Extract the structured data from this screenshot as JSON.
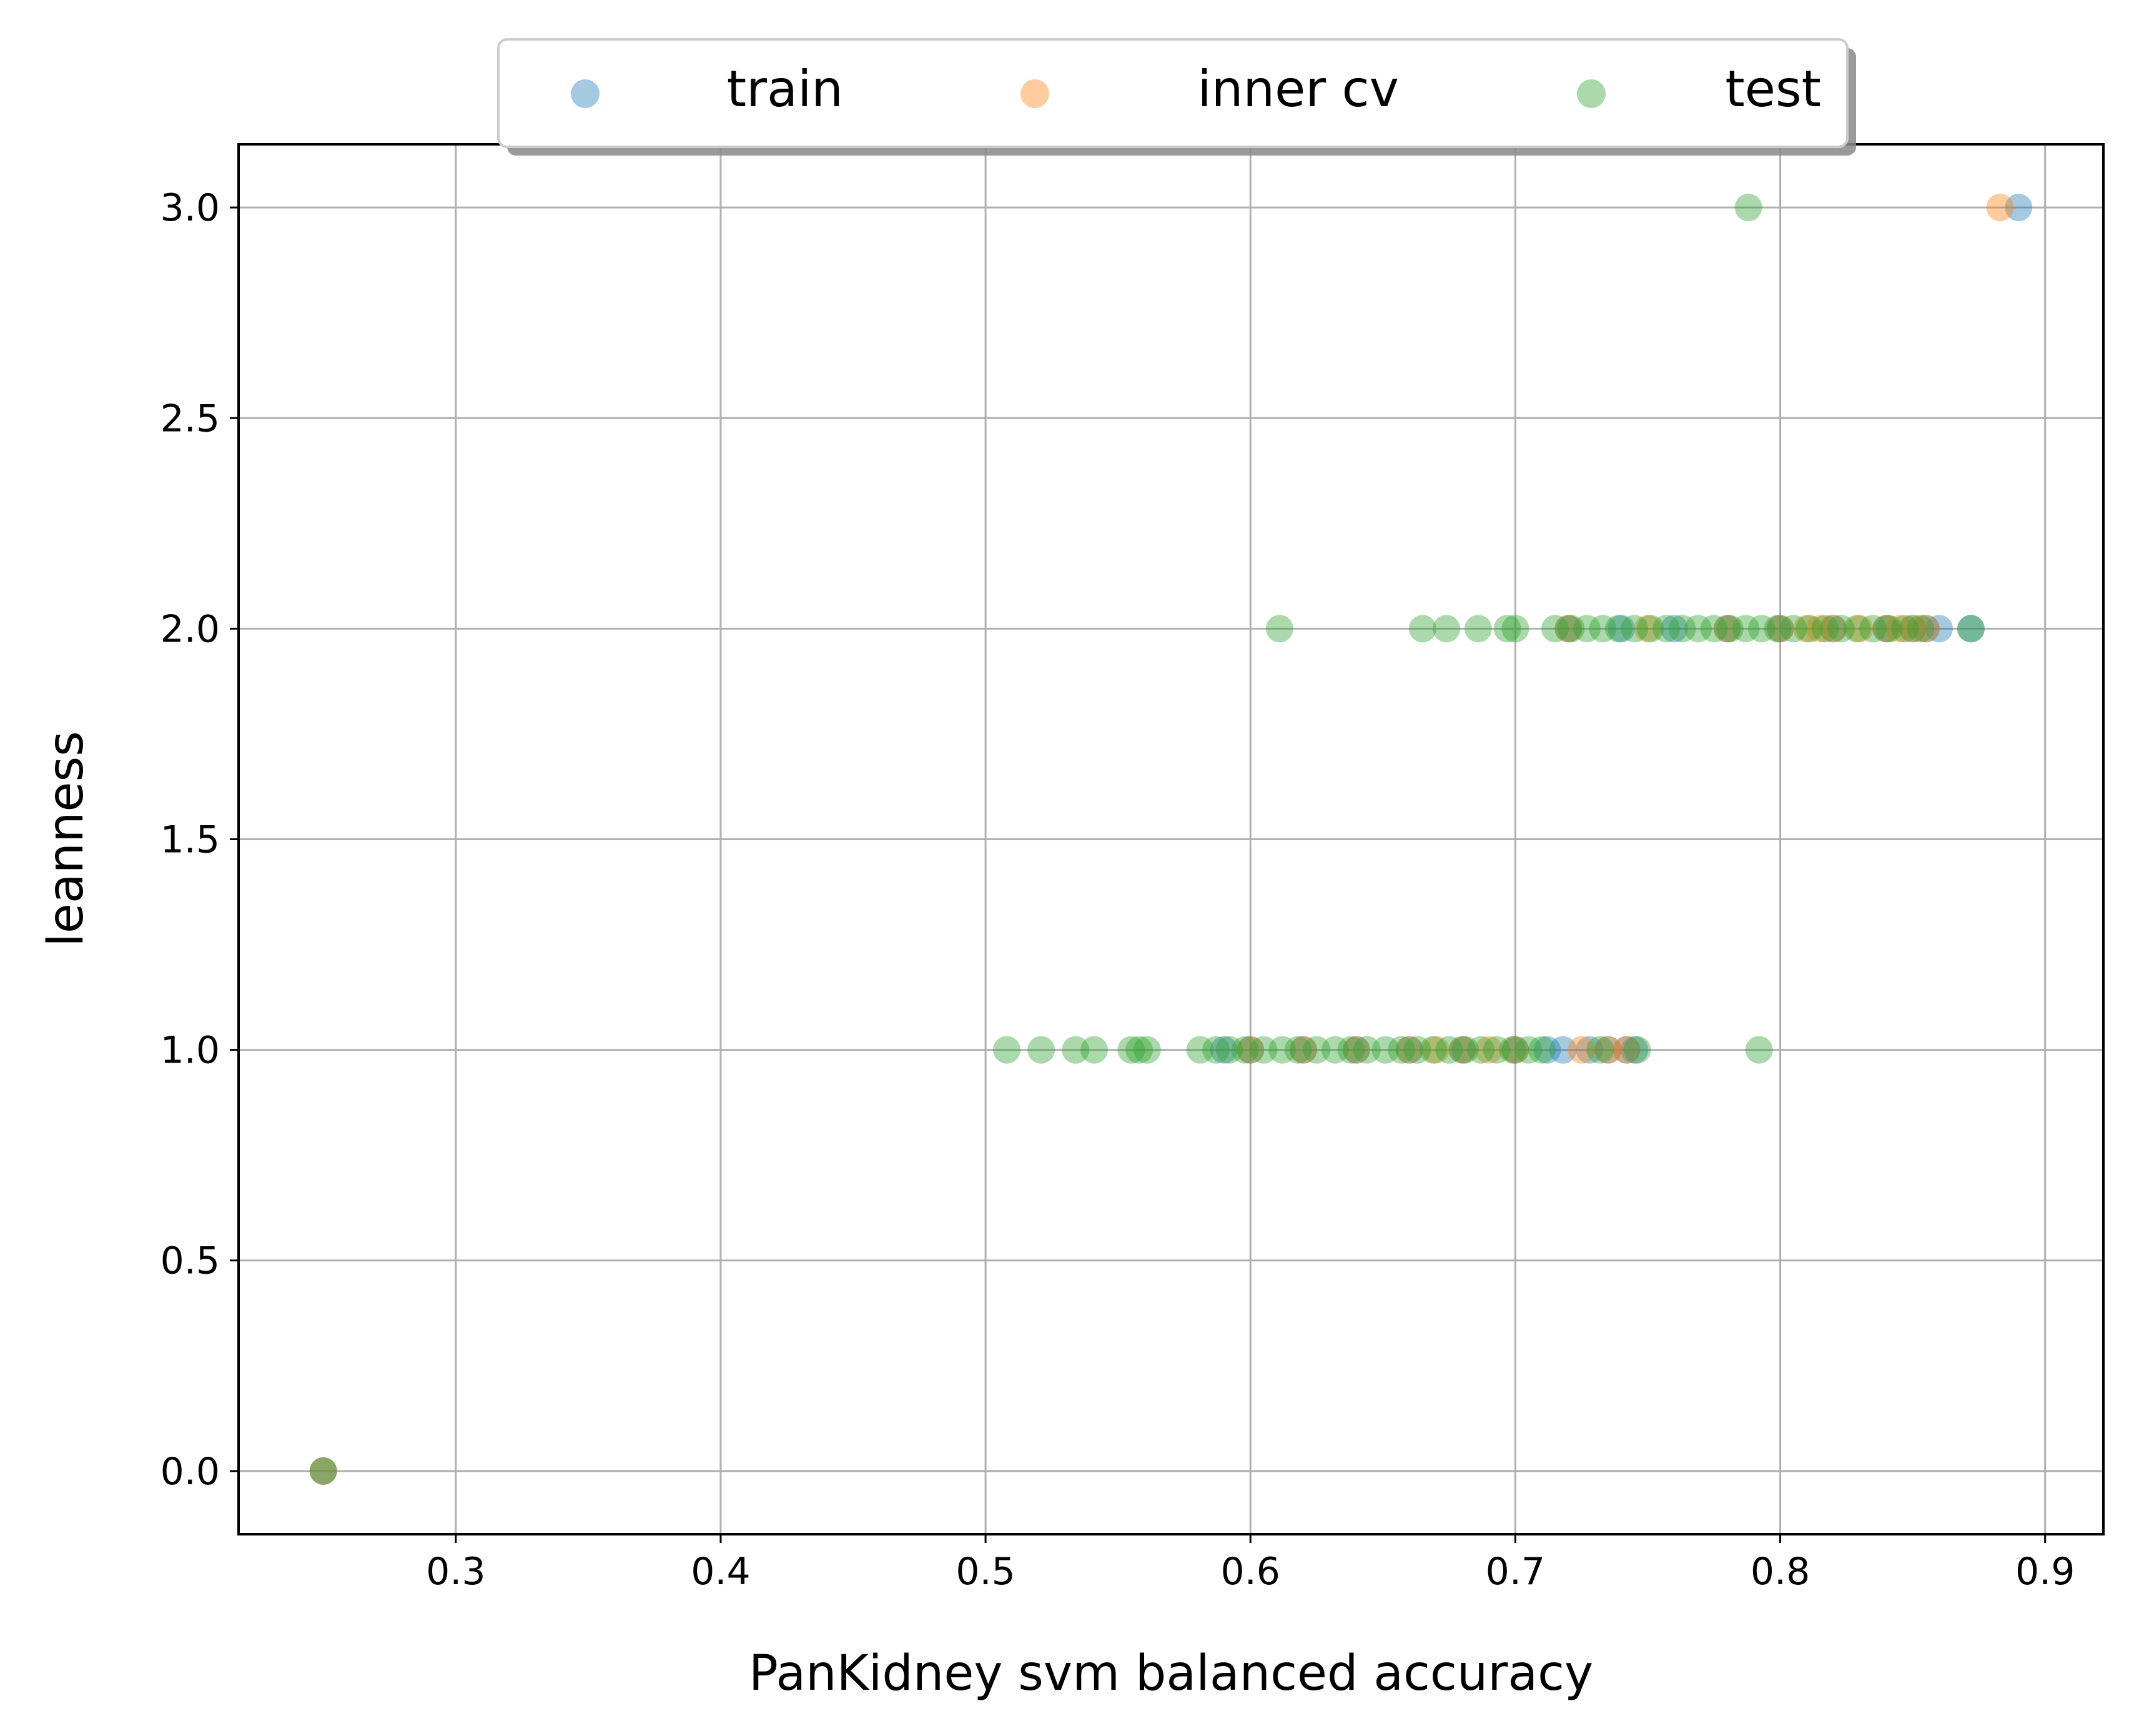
{
  "chart_data": {
    "type": "scatter",
    "xlabel": "PanKidney svm balanced accuracy",
    "ylabel": "leanness",
    "xlim": [
      0.218,
      0.922
    ],
    "ylim": [
      -0.15,
      3.15
    ],
    "x_ticks": [
      0.3,
      0.4,
      0.5,
      0.6,
      0.7,
      0.8,
      0.9
    ],
    "x_tick_labels": [
      "0.3",
      "0.4",
      "0.5",
      "0.6",
      "0.7",
      "0.8",
      "0.9"
    ],
    "y_ticks": [
      0.0,
      0.5,
      1.0,
      1.5,
      2.0,
      2.5,
      3.0
    ],
    "y_tick_labels": [
      "0.0",
      "0.5",
      "1.0",
      "1.5",
      "2.0",
      "2.5",
      "3.0"
    ],
    "grid": true,
    "legend_position": "top-center",
    "series": [
      {
        "name": "train",
        "color": "#1f77b4",
        "points": [
          [
            0.25,
            0
          ],
          [
            0.59,
            1
          ],
          [
            0.6,
            1
          ],
          [
            0.62,
            1
          ],
          [
            0.64,
            1
          ],
          [
            0.66,
            1
          ],
          [
            0.68,
            1
          ],
          [
            0.7,
            1
          ],
          [
            0.712,
            1
          ],
          [
            0.718,
            1
          ],
          [
            0.728,
            1
          ],
          [
            0.735,
            1
          ],
          [
            0.742,
            1
          ],
          [
            0.745,
            1
          ],
          [
            0.72,
            2
          ],
          [
            0.74,
            2
          ],
          [
            0.76,
            2
          ],
          [
            0.78,
            2
          ],
          [
            0.8,
            2
          ],
          [
            0.82,
            2
          ],
          [
            0.84,
            2
          ],
          [
            0.85,
            2
          ],
          [
            0.855,
            2
          ],
          [
            0.86,
            2
          ],
          [
            0.872,
            2
          ],
          [
            0.89,
            3
          ]
        ]
      },
      {
        "name": "inner cv",
        "color": "#ff7f0e",
        "points": [
          [
            0.25,
            0
          ],
          [
            0.6,
            1
          ],
          [
            0.62,
            1
          ],
          [
            0.64,
            1
          ],
          [
            0.66,
            1
          ],
          [
            0.67,
            1
          ],
          [
            0.68,
            1
          ],
          [
            0.69,
            1
          ],
          [
            0.7,
            1
          ],
          [
            0.725,
            1
          ],
          [
            0.735,
            1
          ],
          [
            0.742,
            1
          ],
          [
            0.72,
            2
          ],
          [
            0.75,
            2
          ],
          [
            0.78,
            2
          ],
          [
            0.8,
            2
          ],
          [
            0.81,
            2
          ],
          [
            0.815,
            2
          ],
          [
            0.82,
            2
          ],
          [
            0.83,
            2
          ],
          [
            0.84,
            2
          ],
          [
            0.845,
            2
          ],
          [
            0.85,
            2
          ],
          [
            0.855,
            2
          ],
          [
            0.883,
            3
          ]
        ]
      },
      {
        "name": "test",
        "color": "#2ca02c",
        "points": [
          [
            0.25,
            0
          ],
          [
            0.508,
            1
          ],
          [
            0.521,
            1
          ],
          [
            0.534,
            1
          ],
          [
            0.541,
            1
          ],
          [
            0.555,
            1
          ],
          [
            0.558,
            1
          ],
          [
            0.561,
            1
          ],
          [
            0.581,
            1
          ],
          [
            0.587,
            1
          ],
          [
            0.592,
            1
          ],
          [
            0.598,
            1
          ],
          [
            0.605,
            1
          ],
          [
            0.612,
            1
          ],
          [
            0.618,
            1
          ],
          [
            0.625,
            1
          ],
          [
            0.632,
            1
          ],
          [
            0.638,
            1
          ],
          [
            0.644,
            1
          ],
          [
            0.651,
            1
          ],
          [
            0.657,
            1
          ],
          [
            0.663,
            1
          ],
          [
            0.669,
            1
          ],
          [
            0.675,
            1
          ],
          [
            0.681,
            1
          ],
          [
            0.687,
            1
          ],
          [
            0.693,
            1
          ],
          [
            0.699,
            1
          ],
          [
            0.705,
            1
          ],
          [
            0.71,
            1
          ],
          [
            0.732,
            1
          ],
          [
            0.746,
            1
          ],
          [
            0.792,
            1
          ],
          [
            0.611,
            2
          ],
          [
            0.665,
            2
          ],
          [
            0.674,
            2
          ],
          [
            0.686,
            2
          ],
          [
            0.697,
            2
          ],
          [
            0.7,
            2
          ],
          [
            0.715,
            2
          ],
          [
            0.721,
            2
          ],
          [
            0.727,
            2
          ],
          [
            0.733,
            2
          ],
          [
            0.739,
            2
          ],
          [
            0.745,
            2
          ],
          [
            0.751,
            2
          ],
          [
            0.757,
            2
          ],
          [
            0.763,
            2
          ],
          [
            0.769,
            2
          ],
          [
            0.775,
            2
          ],
          [
            0.781,
            2
          ],
          [
            0.787,
            2
          ],
          [
            0.793,
            2
          ],
          [
            0.799,
            2
          ],
          [
            0.805,
            2
          ],
          [
            0.811,
            2
          ],
          [
            0.817,
            2
          ],
          [
            0.823,
            2
          ],
          [
            0.829,
            2
          ],
          [
            0.835,
            2
          ],
          [
            0.841,
            2
          ],
          [
            0.847,
            2
          ],
          [
            0.853,
            2
          ],
          [
            0.872,
            2
          ],
          [
            0.788,
            3
          ]
        ]
      }
    ]
  }
}
